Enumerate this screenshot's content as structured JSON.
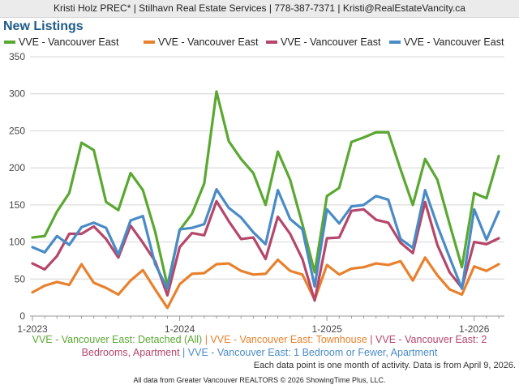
{
  "header": {
    "contact": "Kristi Holz PREC* | Stilhavn Real Estate Services | 778-387-7371 | Kristi@RealEstateVancity.ca",
    "title": "New Listings"
  },
  "chart_data": {
    "type": "line",
    "title": "New Listings",
    "xlabel": "",
    "ylabel": "",
    "ylim": [
      0,
      350
    ],
    "yticks": [
      0,
      50,
      100,
      150,
      200,
      250,
      300,
      350
    ],
    "x_tick_labels": [
      "1-2023",
      "1-2024",
      "1-2025",
      "1-2026"
    ],
    "grid": true,
    "legend_position": "top",
    "months": [
      "2023-01",
      "2023-02",
      "2023-03",
      "2023-04",
      "2023-05",
      "2023-06",
      "2023-07",
      "2023-08",
      "2023-09",
      "2023-10",
      "2023-11",
      "2023-12",
      "2024-01",
      "2024-02",
      "2024-03",
      "2024-04",
      "2024-05",
      "2024-06",
      "2024-07",
      "2024-08",
      "2024-09",
      "2024-10",
      "2024-11",
      "2024-12",
      "2025-01",
      "2025-02",
      "2025-03",
      "2025-04",
      "2025-05",
      "2025-06",
      "2025-07",
      "2025-08",
      "2025-09",
      "2025-10",
      "2025-11",
      "2025-12",
      "2026-01",
      "2026-02",
      "2026-03"
    ],
    "series": [
      {
        "name": "VVE - Vancouver East",
        "description": "Detached (All)",
        "color": "#5aa832",
        "values": [
          106,
          108,
          141,
          166,
          234,
          224,
          154,
          143,
          193,
          170,
          114,
          41,
          116,
          138,
          179,
          303,
          236,
          212,
          193,
          150,
          222,
          184,
          124,
          59,
          162,
          173,
          235,
          241,
          248,
          248,
          198,
          150,
          212,
          184,
          124,
          66,
          166,
          159,
          216
        ]
      },
      {
        "name": "VVE - Vancouver East",
        "description": "Townhouse",
        "color": "#e8812d",
        "values": [
          32,
          41,
          46,
          42,
          70,
          45,
          38,
          29,
          48,
          62,
          36,
          11,
          43,
          57,
          58,
          70,
          71,
          61,
          56,
          57,
          76,
          61,
          56,
          22,
          69,
          56,
          64,
          66,
          71,
          69,
          74,
          48,
          79,
          55,
          36,
          29,
          67,
          61,
          70
        ]
      },
      {
        "name": "VVE - Vancouver East",
        "description": "2 Bedrooms, Apartment",
        "color": "#b5476a",
        "values": [
          71,
          63,
          81,
          111,
          111,
          121,
          104,
          79,
          122,
          99,
          74,
          28,
          93,
          112,
          109,
          155,
          128,
          104,
          106,
          77,
          134,
          111,
          77,
          21,
          105,
          106,
          142,
          144,
          130,
          126,
          99,
          85,
          154,
          96,
          59,
          38,
          100,
          97,
          105
        ]
      },
      {
        "name": "VVE - Vancouver East",
        "description": "1 Bedroom or Fewer, Apartment",
        "color": "#4a8bc6",
        "values": [
          93,
          86,
          108,
          96,
          120,
          126,
          119,
          83,
          129,
          135,
          70,
          37,
          117,
          119,
          124,
          171,
          146,
          133,
          113,
          97,
          170,
          131,
          117,
          40,
          144,
          125,
          148,
          150,
          162,
          157,
          104,
          92,
          170,
          122,
          79,
          37,
          144,
          103,
          141
        ]
      }
    ]
  },
  "caption": {
    "line1_parts": [
      {
        "text": "VVE - Vancouver East: Detached (All)",
        "color": "#5aa832"
      },
      {
        "text": " | ",
        "color": "#e8812d"
      },
      {
        "text": "VVE - Vancouver East: Townhouse",
        "color": "#e8812d"
      },
      {
        "text": " | ",
        "color": "#b5476a"
      },
      {
        "text": "VVE - Vancouver East: 2",
        "color": "#b5476a"
      }
    ],
    "line2_parts": [
      {
        "text": "Bedrooms, Apartment",
        "color": "#b5476a"
      },
      {
        "text": " | ",
        "color": "#4a8bc6"
      },
      {
        "text": "VVE - Vancouver East: 1 Bedroom or Fewer, Apartment",
        "color": "#4a8bc6"
      }
    ]
  },
  "note": "Each data point is one month of activity. Data is from April 9, 2026.",
  "footer": "All data from Greater Vancouver REALTORS © 2026 ShowingTime Plus, LLC."
}
